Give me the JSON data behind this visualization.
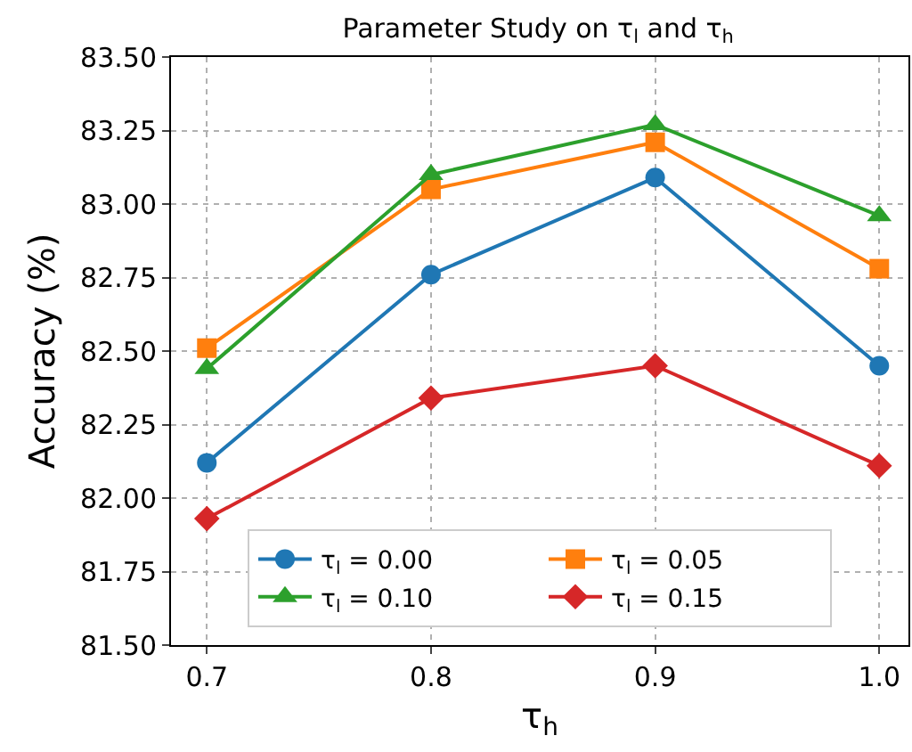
{
  "chart_data": {
    "type": "line",
    "title": "Parameter Study on τ$_{l}$ and τ$_{h}$",
    "xlabel": "τ$_{h}$",
    "ylabel": "Accuracy (%)",
    "x": [
      0.7,
      0.8,
      0.9,
      1.0
    ],
    "series": [
      {
        "name": "τ$_{l}$ = 0.00",
        "color": "#1f77b4",
        "marker": "circle",
        "values": [
          82.12,
          82.76,
          83.09,
          82.45
        ]
      },
      {
        "name": "τ$_{l}$ = 0.05",
        "color": "#ff7f0e",
        "marker": "square",
        "values": [
          82.51,
          83.05,
          83.21,
          82.78
        ]
      },
      {
        "name": "τ$_{l}$ = 0.10",
        "color": "#2ca02c",
        "marker": "triangle",
        "values": [
          82.44,
          83.1,
          83.27,
          82.96
        ]
      },
      {
        "name": "τ$_{l}$ = 0.15",
        "color": "#d62728",
        "marker": "diamond",
        "values": [
          81.93,
          82.34,
          82.45,
          82.11
        ]
      }
    ],
    "xlim": [
      0.684,
      1.013
    ],
    "xticks": [
      {
        "value": 0.7,
        "label": "0.7"
      },
      {
        "value": 0.8,
        "label": "0.8"
      },
      {
        "value": 0.9,
        "label": "0.9"
      },
      {
        "value": 1.0,
        "label": "1.0"
      }
    ],
    "ylim": [
      81.5,
      83.5
    ],
    "yticks": [
      {
        "value": 81.5,
        "label": "81.50"
      },
      {
        "value": 81.75,
        "label": "81.75"
      },
      {
        "value": 82.0,
        "label": "82.00"
      },
      {
        "value": 82.25,
        "label": "82.25"
      },
      {
        "value": 82.5,
        "label": "82.50"
      },
      {
        "value": 82.75,
        "label": "82.75"
      },
      {
        "value": 83.0,
        "label": "83.00"
      },
      {
        "value": 83.25,
        "label": "83.25"
      },
      {
        "value": 83.5,
        "label": "83.50"
      }
    ],
    "grid": true,
    "legend": "bottom",
    "line_style": "solid"
  }
}
